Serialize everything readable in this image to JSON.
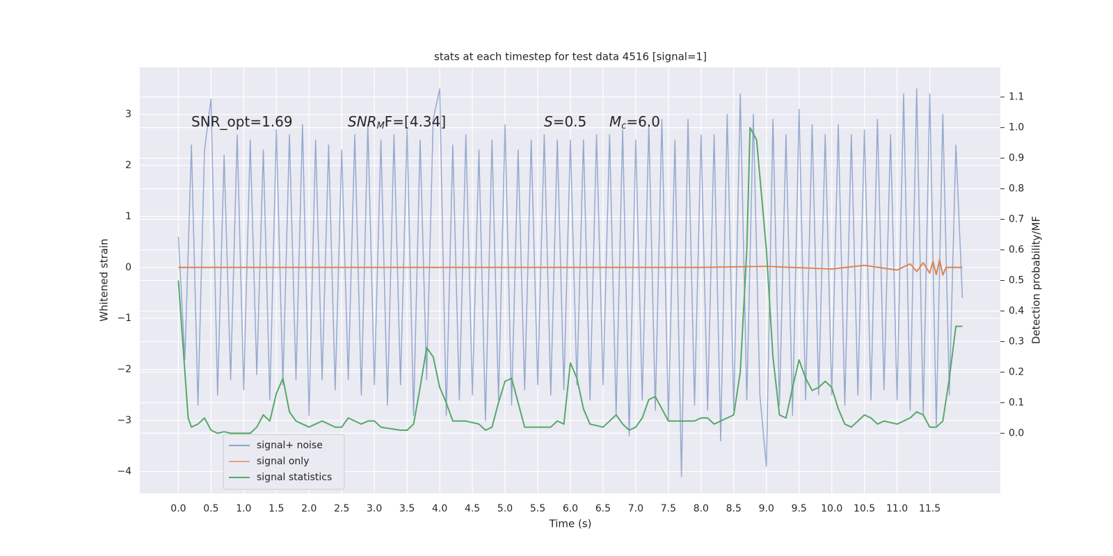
{
  "chart_data": {
    "type": "line",
    "title": "stats at each timestep for test data 4516 [signal=1]",
    "xlabel": "Time (s)",
    "ylabel": "Whitened strain",
    "y2label": "Detection probability/MF",
    "annotations": [
      {
        "text": "SNR_opt=1.69"
      },
      {
        "main": "SNR",
        "sub": "M",
        "rest": "F=[4.34]"
      },
      {
        "main": "S",
        "rest": "=0.5"
      },
      {
        "main": "M",
        "sub": "c",
        "rest": "=6.0"
      }
    ],
    "xlim": [
      -0.59,
      12.58
    ],
    "ylim": [
      -4.43,
      3.92
    ],
    "y2lim": [
      -0.197,
      1.197
    ],
    "xticks": [
      {
        "value": 0,
        "label": "0.0"
      },
      {
        "value": 0.5,
        "label": "0.5"
      },
      {
        "value": 1,
        "label": "1.0"
      },
      {
        "value": 1.5,
        "label": "1.5"
      },
      {
        "value": 2,
        "label": "2.0"
      },
      {
        "value": 2.5,
        "label": "2.5"
      },
      {
        "value": 3,
        "label": "3.0"
      },
      {
        "value": 3.5,
        "label": "3.5"
      },
      {
        "value": 4,
        "label": "4.0"
      },
      {
        "value": 4.5,
        "label": "4.5"
      },
      {
        "value": 5,
        "label": "5.0"
      },
      {
        "value": 5.5,
        "label": "5.5"
      },
      {
        "value": 6,
        "label": "6.0"
      },
      {
        "value": 6.5,
        "label": "6.5"
      },
      {
        "value": 7,
        "label": "7.0"
      },
      {
        "value": 7.5,
        "label": "7.5"
      },
      {
        "value": 8,
        "label": "8.0"
      },
      {
        "value": 8.5,
        "label": "8.5"
      },
      {
        "value": 9,
        "label": "9.0"
      },
      {
        "value": 9.5,
        "label": "9.5"
      },
      {
        "value": 10,
        "label": "10.0"
      },
      {
        "value": 10.5,
        "label": "10.5"
      },
      {
        "value": 11,
        "label": "11.0"
      },
      {
        "value": 11.5,
        "label": "11.5"
      }
    ],
    "yticks": [
      {
        "value": -4,
        "label": "−4"
      },
      {
        "value": -3,
        "label": "−3"
      },
      {
        "value": -2,
        "label": "−2"
      },
      {
        "value": -1,
        "label": "−1"
      },
      0,
      1,
      2,
      3
    ],
    "y2ticks": [
      {
        "value": 0,
        "label": "0.0"
      },
      {
        "value": 0.1,
        "label": "0.1"
      },
      {
        "value": 0.2,
        "label": "0.2"
      },
      {
        "value": 0.3,
        "label": "0.3"
      },
      {
        "value": 0.4,
        "label": "0.4"
      },
      {
        "value": 0.5,
        "label": "0.5"
      },
      {
        "value": 0.6,
        "label": "0.6"
      },
      {
        "value": 0.7,
        "label": "0.7"
      },
      {
        "value": 0.8,
        "label": "0.8"
      },
      {
        "value": 0.9,
        "label": "0.9"
      },
      {
        "value": 1,
        "label": "1.0"
      },
      {
        "value": 1.1,
        "label": "1.1"
      }
    ],
    "grid": true,
    "legend": "lower left",
    "series": [
      {
        "name": "signal+ noise",
        "color": "#4c72b0",
        "x": [
          0,
          0.1,
          0.2,
          0.3,
          0.4,
          0.5,
          0.6,
          0.7,
          0.8,
          0.9,
          1,
          1.1,
          1.2,
          1.3,
          1.4,
          1.5,
          1.6,
          1.7,
          1.8,
          1.9,
          2,
          2.1,
          2.2,
          2.3,
          2.4,
          2.5,
          2.6,
          2.7,
          2.8,
          2.9,
          3,
          3.1,
          3.2,
          3.3,
          3.4,
          3.5,
          3.6,
          3.7,
          3.8,
          3.9,
          4,
          4.1,
          4.2,
          4.3,
          4.4,
          4.5,
          4.6,
          4.7,
          4.8,
          4.9,
          5,
          5.1,
          5.2,
          5.3,
          5.4,
          5.5,
          5.6,
          5.7,
          5.8,
          5.9,
          6,
          6.1,
          6.2,
          6.3,
          6.4,
          6.5,
          6.6,
          6.7,
          6.8,
          6.9,
          7,
          7.1,
          7.2,
          7.3,
          7.4,
          7.5,
          7.6,
          7.7,
          7.8,
          7.9,
          8,
          8.1,
          8.2,
          8.3,
          8.4,
          8.5,
          8.6,
          8.7,
          8.8,
          8.9,
          9,
          9.1,
          9.2,
          9.3,
          9.4,
          9.5,
          9.6,
          9.7,
          9.8,
          9.9,
          10,
          10.1,
          10.2,
          10.3,
          10.4,
          10.5,
          10.6,
          10.7,
          10.8,
          10.9,
          11,
          11.1,
          11.2,
          11.3,
          11.4,
          11.5,
          11.6,
          11.7,
          11.8,
          11.9,
          12
        ],
        "values": [
          0.6,
          -1.8,
          2.4,
          -2.7,
          2.3,
          3.3,
          -2.5,
          2.2,
          -2.2,
          2.6,
          -2.4,
          2.5,
          -2.1,
          2.3,
          -2.6,
          2.7,
          -2.3,
          2.6,
          -2.2,
          2.8,
          -2.9,
          2.5,
          -2.2,
          2.4,
          -2.4,
          2.3,
          -2.2,
          2.6,
          -2.5,
          2.8,
          -2.3,
          2.5,
          -2.7,
          2.6,
          -2.3,
          2.7,
          -2.9,
          2.5,
          -2.2,
          2.9,
          3.5,
          -2.9,
          2.4,
          -2.6,
          2.6,
          -2.5,
          2.3,
          -3.0,
          2.5,
          -2.6,
          2.8,
          -2.7,
          2.3,
          -2.4,
          2.5,
          -2.3,
          2.6,
          -2.5,
          2.5,
          -2.4,
          2.5,
          -2.3,
          2.5,
          -2.6,
          2.6,
          -2.3,
          2.6,
          -2.9,
          2.7,
          -3.3,
          2.5,
          -2.6,
          2.8,
          -2.8,
          2.9,
          -3.0,
          2.5,
          -4.1,
          2.9,
          -2.7,
          2.6,
          -2.8,
          2.6,
          -3.4,
          3.0,
          -2.8,
          3.4,
          -2.6,
          3.0,
          -2.5,
          -3.9,
          2.9,
          -2.7,
          2.6,
          -2.9,
          3.1,
          -2.6,
          2.8,
          -2.5,
          2.6,
          -2.5,
          2.8,
          -2.7,
          2.6,
          -2.5,
          2.7,
          -2.6,
          2.9,
          -2.4,
          2.6,
          -2.6,
          3.4,
          -2.8,
          3.5,
          -2.9,
          3.4,
          -3.1,
          3.0,
          -2.5,
          2.4,
          -0.6
        ]
      },
      {
        "name": "signal only",
        "color": "#dd8452",
        "x": [
          0,
          2,
          4,
          6,
          8,
          9,
          10,
          10.5,
          11,
          11.2,
          11.3,
          11.4,
          11.5,
          11.55,
          11.6,
          11.65,
          11.7,
          11.75,
          12
        ],
        "values": [
          0,
          0,
          0,
          0,
          0,
          0.02,
          -0.03,
          0.04,
          -0.05,
          0.07,
          -0.08,
          0.09,
          -0.11,
          0.12,
          -0.14,
          0.15,
          -0.15,
          0,
          0
        ]
      },
      {
        "name": "signal statistics",
        "color": "#55a868",
        "axis": "y2",
        "x": [
          0,
          0.1,
          0.15,
          0.2,
          0.3,
          0.4,
          0.5,
          0.6,
          0.7,
          0.8,
          1,
          1.1,
          1.2,
          1.3,
          1.4,
          1.5,
          1.6,
          1.7,
          1.8,
          1.9,
          2,
          2.2,
          2.4,
          2.5,
          2.6,
          2.7,
          2.8,
          2.9,
          3,
          3.1,
          3.4,
          3.5,
          3.6,
          3.7,
          3.8,
          3.9,
          4,
          4.1,
          4.2,
          4.4,
          4.6,
          4.7,
          4.8,
          4.9,
          5,
          5.1,
          5.2,
          5.3,
          5.5,
          5.7,
          5.8,
          5.9,
          6,
          6.1,
          6.2,
          6.3,
          6.5,
          6.7,
          6.8,
          6.9,
          7,
          7.1,
          7.2,
          7.3,
          7.4,
          7.5,
          7.7,
          7.9,
          8,
          8.1,
          8.2,
          8.3,
          8.4,
          8.5,
          8.6,
          8.7,
          8.75,
          8.85,
          9,
          9.1,
          9.2,
          9.3,
          9.4,
          9.5,
          9.6,
          9.7,
          9.8,
          9.9,
          10,
          10.1,
          10.2,
          10.3,
          10.5,
          10.6,
          10.7,
          10.8,
          11,
          11.2,
          11.3,
          11.4,
          11.5,
          11.6,
          11.7,
          11.8,
          11.9,
          12
        ],
        "values": [
          0.5,
          0.2,
          0.05,
          0.02,
          0.03,
          0.05,
          0.01,
          0,
          0.005,
          0,
          0,
          0,
          0.02,
          0.06,
          0.04,
          0.13,
          0.18,
          0.07,
          0.04,
          0.03,
          0.02,
          0.04,
          0.02,
          0.02,
          0.05,
          0.04,
          0.03,
          0.04,
          0.04,
          0.02,
          0.01,
          0.01,
          0.03,
          0.15,
          0.28,
          0.25,
          0.15,
          0.1,
          0.04,
          0.04,
          0.03,
          0.01,
          0.02,
          0.1,
          0.17,
          0.18,
          0.1,
          0.02,
          0.02,
          0.02,
          0.04,
          0.03,
          0.23,
          0.18,
          0.08,
          0.03,
          0.02,
          0.06,
          0.03,
          0.01,
          0.02,
          0.05,
          0.11,
          0.12,
          0.08,
          0.04,
          0.04,
          0.04,
          0.05,
          0.05,
          0.03,
          0.04,
          0.05,
          0.06,
          0.2,
          0.6,
          1.0,
          0.96,
          0.6,
          0.25,
          0.06,
          0.05,
          0.15,
          0.24,
          0.18,
          0.14,
          0.15,
          0.17,
          0.15,
          0.08,
          0.03,
          0.02,
          0.06,
          0.05,
          0.03,
          0.04,
          0.03,
          0.05,
          0.07,
          0.06,
          0.02,
          0.02,
          0.04,
          0.18,
          0.35,
          0.35
        ]
      }
    ]
  }
}
